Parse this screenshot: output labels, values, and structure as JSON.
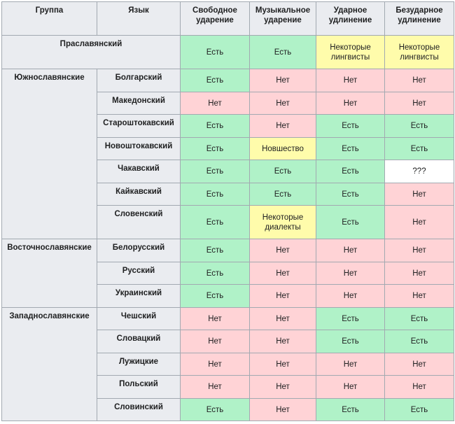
{
  "colors": {
    "yes": "#b0f2c8",
    "no": "#ffd3d6",
    "partial": "#fffcab",
    "unknown": "#ffffff",
    "header": "#eaecf0"
  },
  "headers": [
    "Группа",
    "Язык",
    "Свободное ударение",
    "Музыкальное ударение",
    "Ударное удлинение",
    "Безударное удлинение"
  ],
  "proto": {
    "name": "Праславянский",
    "cells": [
      "Есть",
      "Есть",
      "Некоторые лингвисты",
      "Некоторые лингвисты"
    ]
  },
  "groups": [
    {
      "name": "Южнославянские",
      "rows": [
        {
          "lang": "Болгарский",
          "cells": [
            "Есть",
            "Нет",
            "Нет",
            "Нет"
          ]
        },
        {
          "lang": "Македонский",
          "cells": [
            "Нет",
            "Нет",
            "Нет",
            "Нет"
          ]
        },
        {
          "lang": "Староштокавский",
          "cells": [
            "Есть",
            "Нет",
            "Есть",
            "Есть"
          ]
        },
        {
          "lang": "Новоштокавский",
          "cells": [
            "Есть",
            "Новшество",
            "Есть",
            "Есть"
          ]
        },
        {
          "lang": "Чакавский",
          "cells": [
            "Есть",
            "Есть",
            "Есть",
            "???"
          ]
        },
        {
          "lang": "Кайкавский",
          "cells": [
            "Есть",
            "Есть",
            "Есть",
            "Нет"
          ]
        },
        {
          "lang": "Словенский",
          "cells": [
            "Есть",
            "Некоторые диалекты",
            "Есть",
            "Нет"
          ]
        }
      ]
    },
    {
      "name": "Восточнославянские",
      "rows": [
        {
          "lang": "Белорусский",
          "cells": [
            "Есть",
            "Нет",
            "Нет",
            "Нет"
          ]
        },
        {
          "lang": "Русский",
          "cells": [
            "Есть",
            "Нет",
            "Нет",
            "Нет"
          ]
        },
        {
          "lang": "Украинский",
          "cells": [
            "Есть",
            "Нет",
            "Нет",
            "Нет"
          ]
        }
      ]
    },
    {
      "name": "Западнославянские",
      "rows": [
        {
          "lang": "Чешский",
          "cells": [
            "Нет",
            "Нет",
            "Есть",
            "Есть"
          ]
        },
        {
          "lang": "Словацкий",
          "cells": [
            "Нет",
            "Нет",
            "Есть",
            "Есть"
          ]
        },
        {
          "lang": "Лужицкие",
          "cells": [
            "Нет",
            "Нет",
            "Нет",
            "Нет"
          ]
        },
        {
          "lang": "Польский",
          "cells": [
            "Нет",
            "Нет",
            "Нет",
            "Нет"
          ]
        },
        {
          "lang": "Словинский",
          "cells": [
            "Есть",
            "Нет",
            "Есть",
            "Есть"
          ]
        }
      ]
    }
  ]
}
